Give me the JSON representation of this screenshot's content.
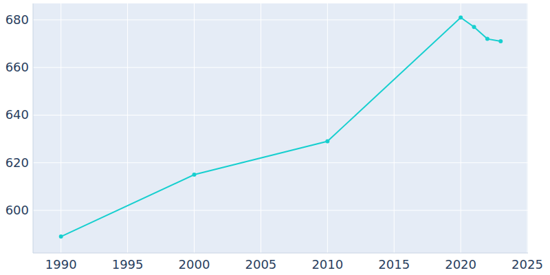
{
  "chart_data": {
    "type": "line",
    "x": [
      1990,
      2000,
      2010,
      2020,
      2021,
      2022,
      2023
    ],
    "values": [
      589,
      615,
      629,
      681,
      677,
      672,
      671
    ],
    "color": "#17cfcf",
    "marker": "circle",
    "xlim": [
      1987.9,
      2025.05
    ],
    "ylim": [
      582.1,
      686.9
    ],
    "xticks": [
      1990,
      1995,
      2000,
      2005,
      2010,
      2015,
      2020,
      2025
    ],
    "yticks": [
      600,
      620,
      640,
      660,
      680
    ],
    "grid": true
  }
}
